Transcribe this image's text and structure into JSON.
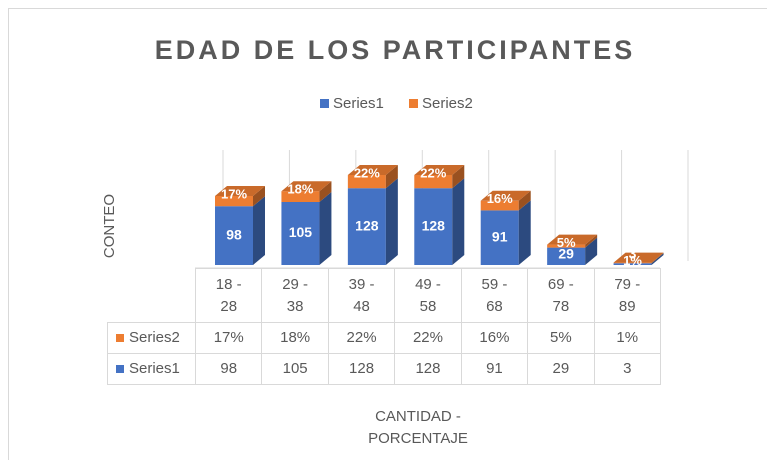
{
  "chart_data": {
    "type": "bar3d_stacked_table",
    "title": "EDAD DE LOS PARTICIPANTES",
    "ylabel": "CONTEO",
    "xlabel": "CANTIDAD - PORCENTAJE",
    "categories": [
      "18 - 28",
      "29 - 38",
      "39 - 48",
      "49 - 58",
      "59 - 68",
      "69 - 78",
      "79 - 89"
    ],
    "series": [
      {
        "name": "Series1",
        "color": "#4472c4",
        "values": [
          98,
          105,
          128,
          128,
          91,
          29,
          3
        ]
      },
      {
        "name": "Series2",
        "color": "#ed7d31",
        "values": [
          17,
          18,
          22,
          22,
          16,
          5,
          1
        ],
        "value_labels": [
          "17%",
          "18%",
          "22%",
          "22%",
          "16%",
          "5%",
          "1%"
        ]
      }
    ],
    "ylim": [
      0,
      240
    ],
    "legend": "top"
  }
}
